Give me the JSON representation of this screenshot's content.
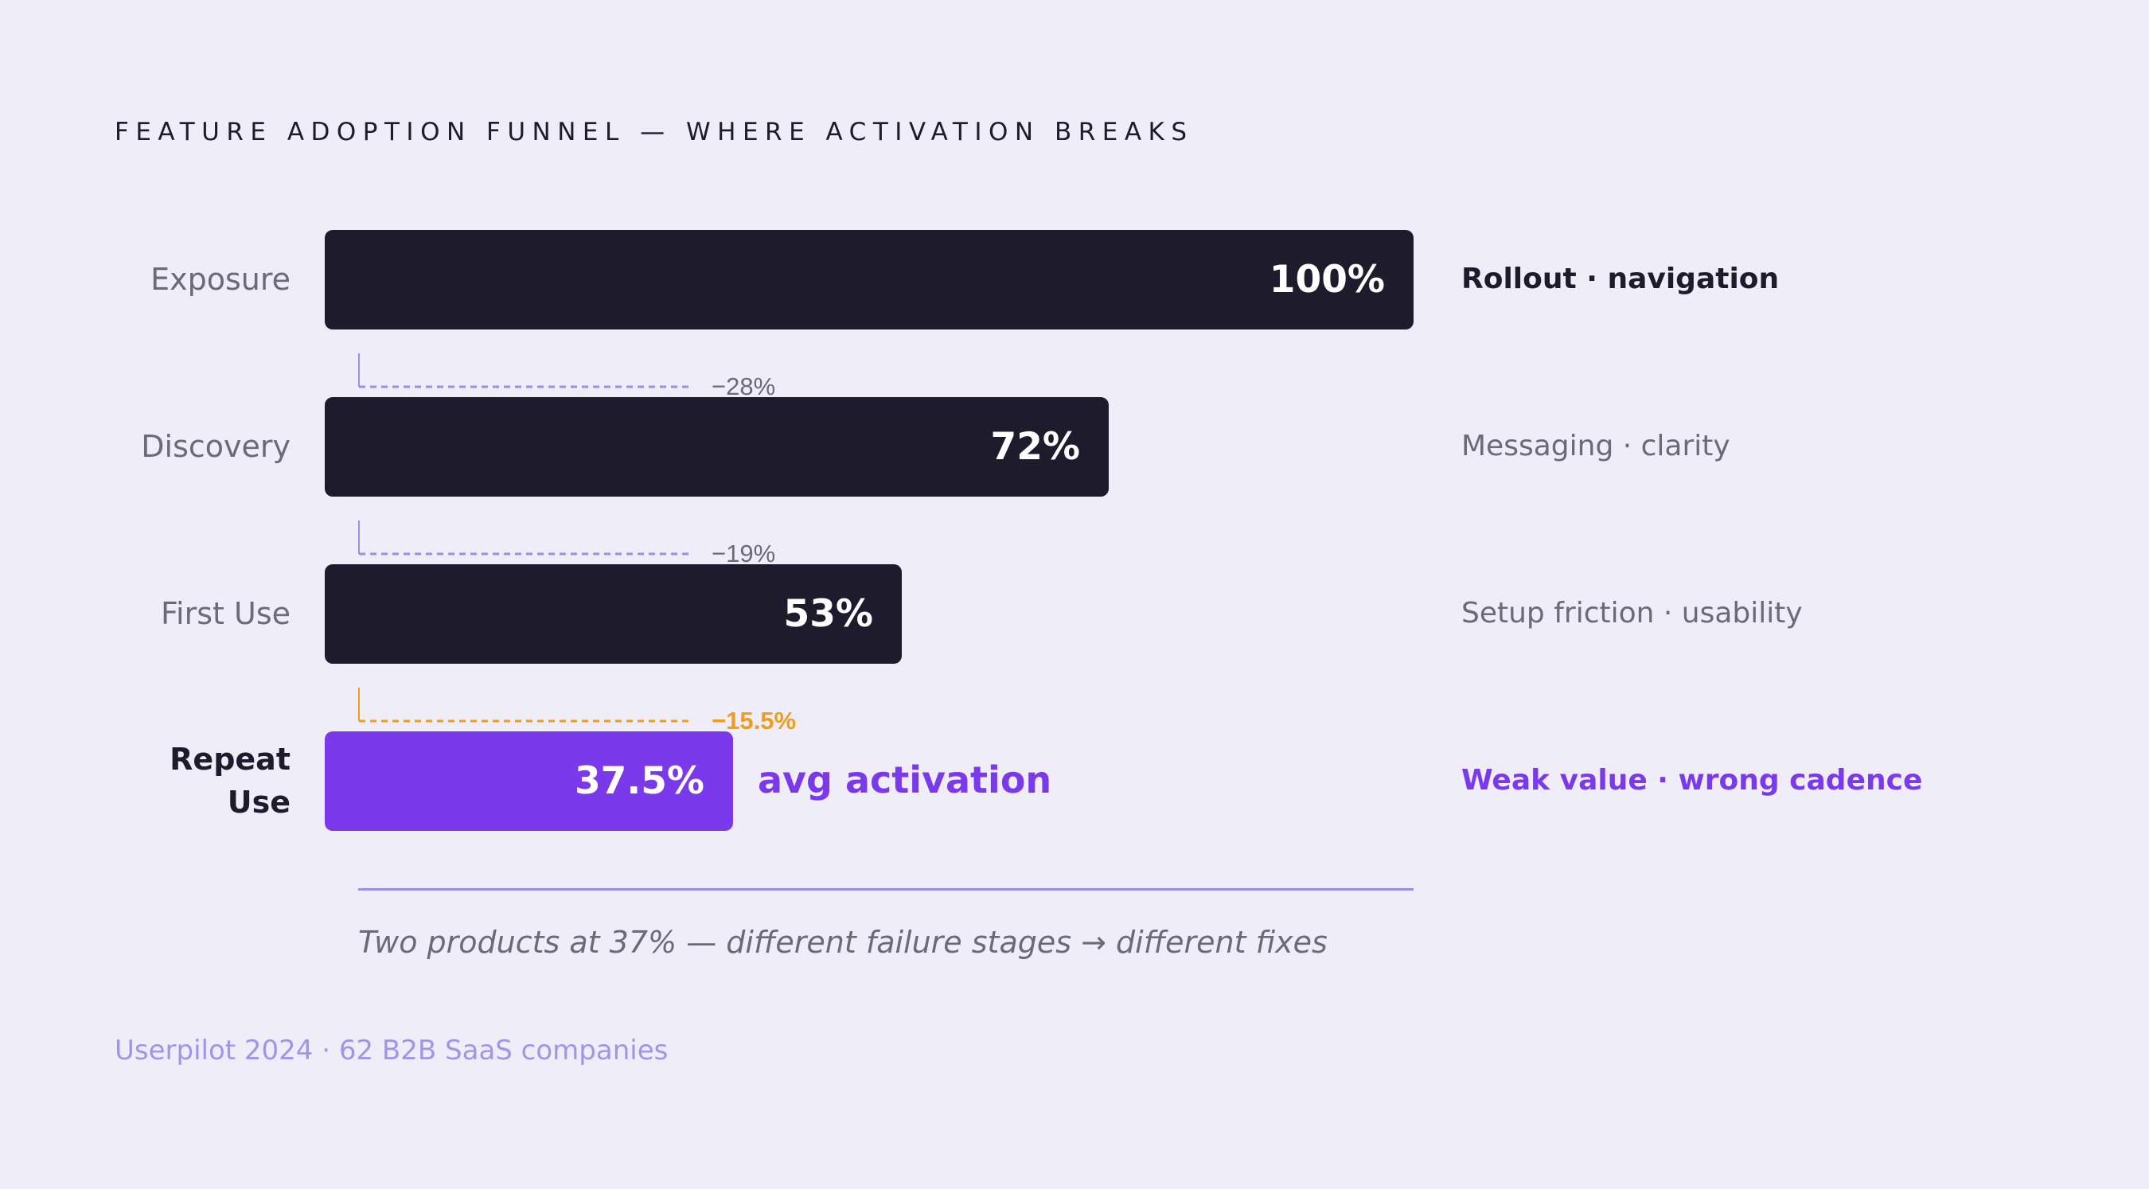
{
  "title": "FEATURE ADOPTION FUNNEL — WHERE ACTIVATION BREAKS",
  "colors": {
    "background": "#efedf8",
    "bar": "#1d1b2c",
    "accent": "#7b39ec",
    "warning": "#ef9d1a",
    "muted": "#6c6a78",
    "rule": "#9b8ee6"
  },
  "chart_data": {
    "type": "bar",
    "orientation": "horizontal",
    "categories": [
      "Exposure",
      "Discovery",
      "First Use",
      "Repeat Use"
    ],
    "values": [
      100,
      72,
      53,
      37.5
    ],
    "value_labels": [
      "100%",
      "72%",
      "53%",
      "37.5%"
    ],
    "drops": [
      "−28%",
      "−19%",
      "−15.5%"
    ],
    "reasons": [
      "Rollout · navigation",
      "Messaging · clarity",
      "Setup friction · usability",
      "Weak value · wrong cadence"
    ],
    "highlight_note": "avg activation",
    "xlim": [
      0,
      100
    ]
  },
  "caption": "Two products at 37% — different failure stages → different fixes",
  "source": "Userpilot 2024 · 62 B2B SaaS companies"
}
